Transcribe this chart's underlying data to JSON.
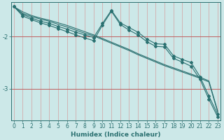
{
  "xlabel": "Humidex (Indice chaleur)",
  "bg_color": "#cce8e8",
  "grid_v_color": "#d4a0a0",
  "grid_h_color": "#c06060",
  "line_color": "#2a7070",
  "x_ticks": [
    0,
    1,
    2,
    3,
    4,
    5,
    6,
    7,
    8,
    9,
    10,
    11,
    12,
    13,
    14,
    15,
    16,
    17,
    18,
    19,
    20,
    21,
    22,
    23
  ],
  "ylim": [
    -3.6,
    -1.35
  ],
  "xlim": [
    -0.3,
    23.3
  ],
  "series": [
    {
      "pts": [
        [
          0,
          -1.43
        ],
        [
          1,
          -1.53
        ],
        [
          2,
          -1.6
        ],
        [
          3,
          -1.65
        ],
        [
          4,
          -1.69
        ],
        [
          5,
          -1.74
        ],
        [
          6,
          -1.79
        ],
        [
          7,
          -1.85
        ],
        [
          8,
          -1.91
        ],
        [
          9,
          -1.97
        ],
        [
          10,
          -2.04
        ],
        [
          11,
          -2.11
        ],
        [
          12,
          -2.18
        ],
        [
          13,
          -2.25
        ],
        [
          14,
          -2.33
        ],
        [
          15,
          -2.4
        ],
        [
          16,
          -2.47
        ],
        [
          17,
          -2.54
        ],
        [
          18,
          -2.6
        ],
        [
          19,
          -2.66
        ],
        [
          20,
          -2.72
        ],
        [
          21,
          -2.78
        ],
        [
          22,
          -2.85
        ],
        [
          23,
          -3.43
        ]
      ],
      "marker": false
    },
    {
      "pts": [
        [
          0,
          -1.43
        ],
        [
          1,
          -1.56
        ],
        [
          2,
          -1.62
        ],
        [
          3,
          -1.67
        ],
        [
          4,
          -1.71
        ],
        [
          5,
          -1.77
        ],
        [
          6,
          -1.82
        ],
        [
          7,
          -1.88
        ],
        [
          8,
          -1.94
        ],
        [
          9,
          -1.99
        ],
        [
          10,
          -2.06
        ],
        [
          11,
          -2.13
        ],
        [
          12,
          -2.2
        ],
        [
          13,
          -2.27
        ],
        [
          14,
          -2.35
        ],
        [
          15,
          -2.42
        ],
        [
          16,
          -2.49
        ],
        [
          17,
          -2.56
        ],
        [
          18,
          -2.62
        ],
        [
          19,
          -2.68
        ],
        [
          20,
          -2.74
        ],
        [
          21,
          -2.8
        ],
        [
          22,
          -2.87
        ],
        [
          23,
          -3.45
        ]
      ],
      "marker": false
    },
    {
      "pts": [
        [
          0,
          -1.43
        ],
        [
          1,
          -1.58
        ],
        [
          2,
          -1.65
        ],
        [
          3,
          -1.71
        ],
        [
          4,
          -1.75
        ],
        [
          5,
          -1.81
        ],
        [
          6,
          -1.86
        ],
        [
          7,
          -1.92
        ],
        [
          8,
          -1.97
        ],
        [
          9,
          -2.02
        ],
        [
          10,
          -1.75
        ],
        [
          11,
          -1.5
        ],
        [
          12,
          -1.74
        ],
        [
          13,
          -1.83
        ],
        [
          14,
          -1.92
        ],
        [
          15,
          -2.05
        ],
        [
          16,
          -2.14
        ],
        [
          17,
          -2.15
        ],
        [
          18,
          -2.37
        ],
        [
          19,
          -2.44
        ],
        [
          20,
          -2.5
        ],
        [
          21,
          -2.77
        ],
        [
          22,
          -3.14
        ],
        [
          23,
          -3.49
        ]
      ],
      "marker": true
    },
    {
      "pts": [
        [
          0,
          -1.43
        ],
        [
          1,
          -1.61
        ],
        [
          2,
          -1.68
        ],
        [
          3,
          -1.74
        ],
        [
          4,
          -1.79
        ],
        [
          5,
          -1.85
        ],
        [
          6,
          -1.91
        ],
        [
          7,
          -1.97
        ],
        [
          8,
          -2.03
        ],
        [
          9,
          -2.08
        ],
        [
          10,
          -1.78
        ],
        [
          11,
          -1.52
        ],
        [
          12,
          -1.77
        ],
        [
          13,
          -1.88
        ],
        [
          14,
          -1.97
        ],
        [
          15,
          -2.1
        ],
        [
          16,
          -2.19
        ],
        [
          17,
          -2.2
        ],
        [
          18,
          -2.42
        ],
        [
          19,
          -2.49
        ],
        [
          20,
          -2.57
        ],
        [
          21,
          -2.82
        ],
        [
          22,
          -3.2
        ],
        [
          23,
          -3.54
        ]
      ],
      "marker": true
    }
  ],
  "marker_style": "D",
  "marker_size": 2.0,
  "linewidth": 0.8,
  "tick_fontsize": 5.5,
  "label_fontsize": 6.5,
  "ytick_vals": [
    -2.0,
    -3.0
  ],
  "ytick_labels": [
    "-2",
    "-3"
  ]
}
